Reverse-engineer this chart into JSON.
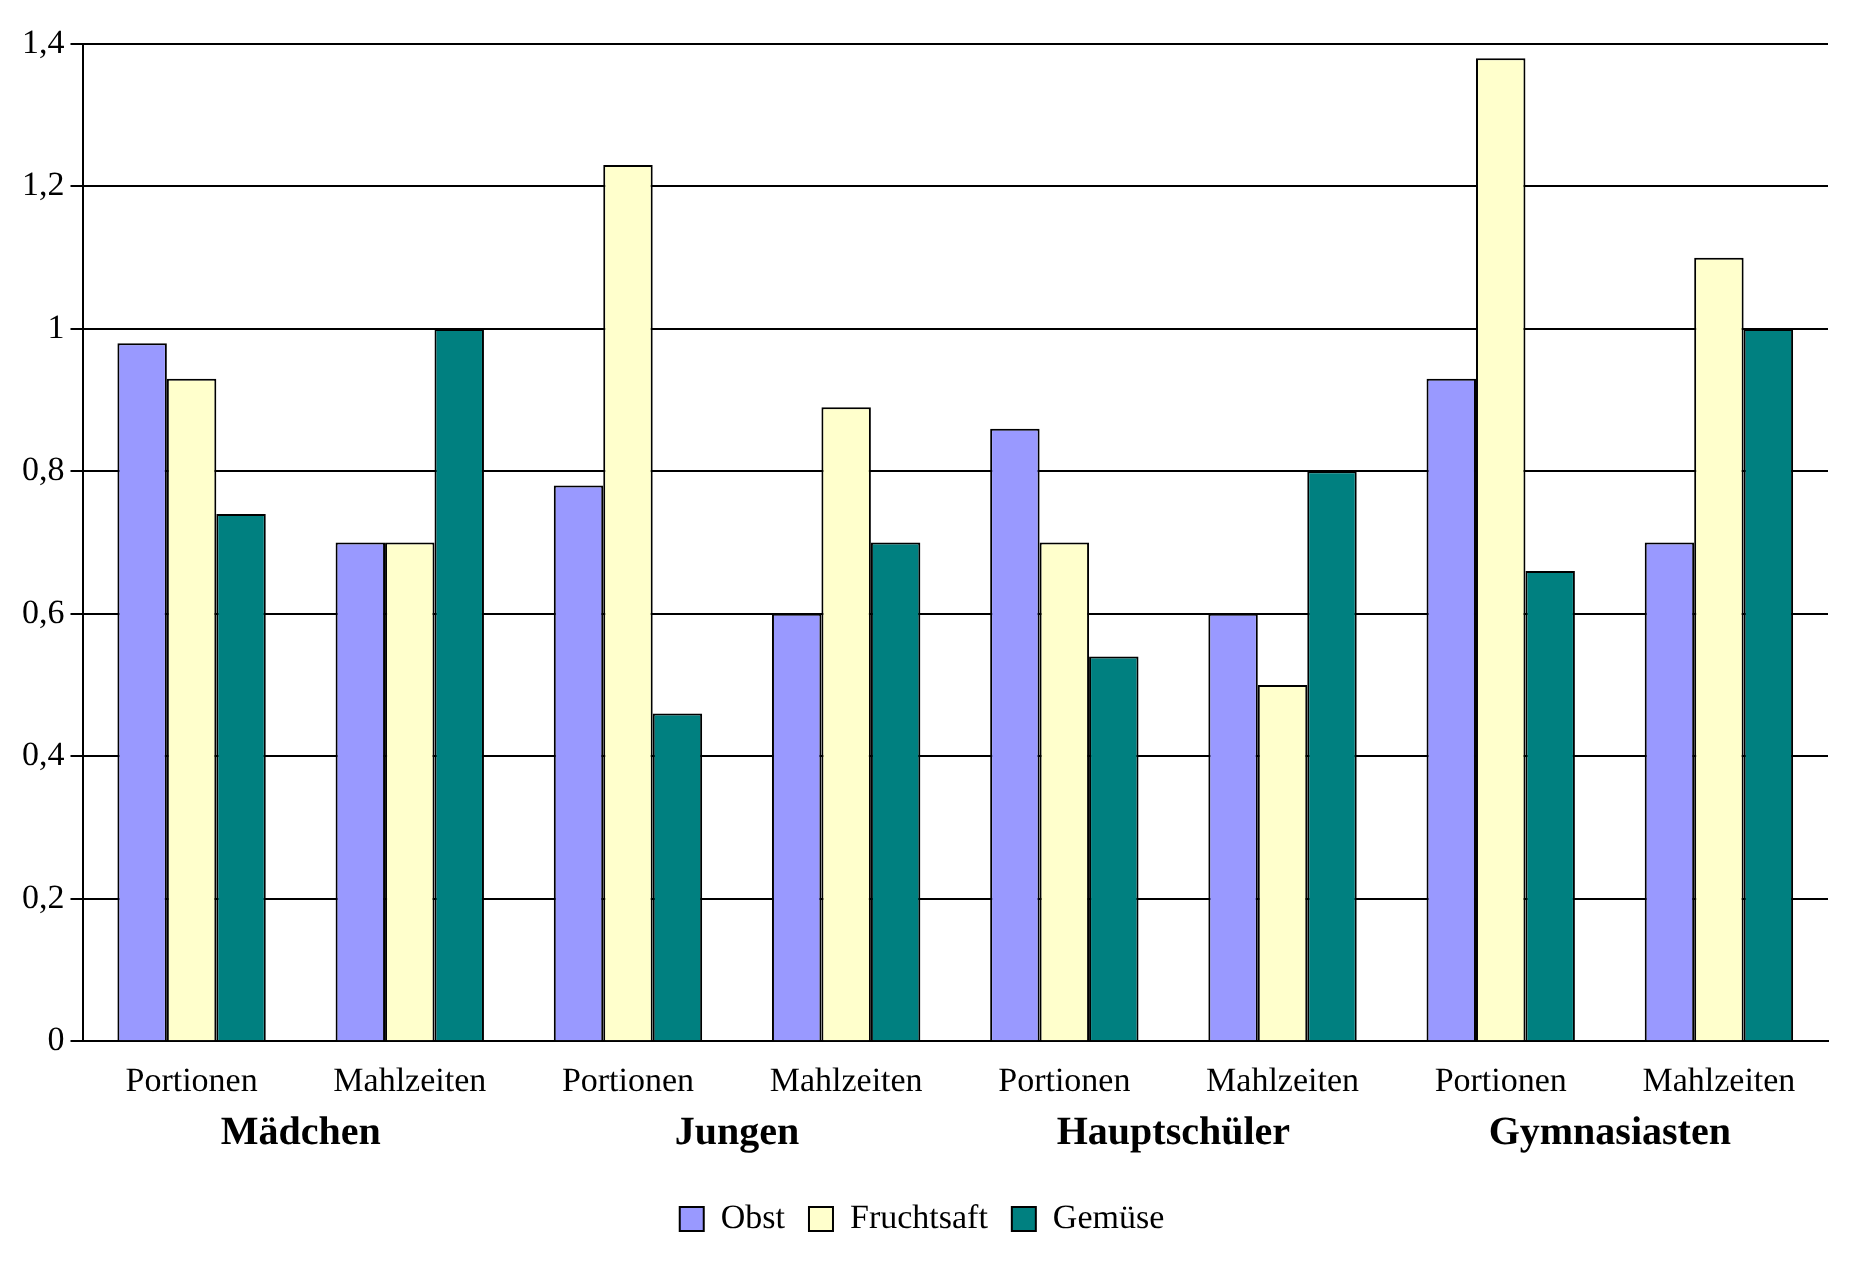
{
  "chart_data": {
    "type": "bar",
    "categories": [
      "Portionen",
      "Mahlzeiten",
      "Portionen",
      "Mahlzeiten",
      "Portionen",
      "Mahlzeiten",
      "Portionen",
      "Mahlzeiten"
    ],
    "series": [
      {
        "name": "Obst",
        "color": "#9999ff",
        "values": [
          0.98,
          0.7,
          0.78,
          0.6,
          0.86,
          0.6,
          0.93,
          0.7
        ]
      },
      {
        "name": "Fruchtsaft",
        "color": "#ffffcc",
        "values": [
          0.93,
          0.7,
          1.23,
          0.89,
          0.7,
          0.5,
          1.38,
          1.1
        ]
      },
      {
        "name": "Gemüse",
        "color": "#008080",
        "values": [
          0.74,
          1.0,
          0.46,
          0.7,
          0.54,
          0.8,
          0.66,
          1.0
        ]
      }
    ],
    "annotations": [
      "Mädchen",
      "Jungen",
      "Hauptschüler",
      "Gymnasiasten"
    ],
    "ylim": [
      0,
      1.4
    ],
    "yticks": [
      0,
      {
        "value": 0.2,
        "label": "0,2"
      },
      {
        "value": 0.4,
        "label": "0,4"
      },
      {
        "value": 0.6,
        "label": "0,6"
      },
      {
        "value": 0.8,
        "label": "0,8"
      },
      1,
      {
        "value": 1.2,
        "label": "1,2"
      },
      {
        "value": 1.4,
        "label": "1,4"
      }
    ],
    "grid": "y",
    "legend": "bottom"
  }
}
